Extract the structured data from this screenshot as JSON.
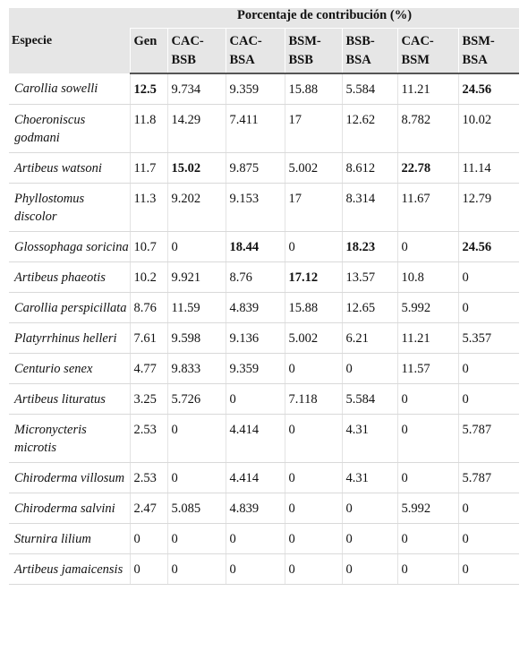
{
  "table": {
    "group_header": "Porcentaje de contribución (%)",
    "species_header": "Especie",
    "columns": [
      "Gen",
      "CAC-\nBSB",
      "CAC-\nBSA",
      "BSM-\nBSB",
      "BSB-\nBSA",
      "CAC-\nBSM",
      "BSM-\nBSA"
    ],
    "rows": [
      {
        "species": "Carollia sowelli",
        "values": [
          "12.5",
          "9.734",
          "9.359",
          "15.88",
          "5.584",
          "11.21",
          "24.56"
        ],
        "bold": [
          0,
          6
        ]
      },
      {
        "species": "Choeroniscus godmani",
        "values": [
          "11.8",
          "14.29",
          "7.411",
          "17",
          "12.62",
          "8.782",
          "10.02"
        ],
        "bold": []
      },
      {
        "species": "Artibeus watsoni",
        "values": [
          "11.7",
          "15.02",
          "9.875",
          "5.002",
          "8.612",
          "22.78",
          "11.14"
        ],
        "bold": [
          1,
          5
        ]
      },
      {
        "species": "Phyllostomus discolor",
        "values": [
          "11.3",
          "9.202",
          "9.153",
          "17",
          "8.314",
          "11.67",
          "12.79"
        ],
        "bold": []
      },
      {
        "species": "Glossophaga soricina",
        "values": [
          "10.7",
          "0",
          "18.44",
          "0",
          "18.23",
          "0",
          "24.56"
        ],
        "bold": [
          2,
          4,
          6
        ]
      },
      {
        "species": "Artibeus phaeotis",
        "values": [
          "10.2",
          "9.921",
          "8.76",
          "17.12",
          "13.57",
          "10.8",
          "0"
        ],
        "bold": [
          3
        ]
      },
      {
        "species": "Carollia perspicillata",
        "values": [
          "8.76",
          "11.59",
          "4.839",
          "15.88",
          "12.65",
          "5.992",
          "0"
        ],
        "bold": []
      },
      {
        "species": "Platyrrhinus helleri",
        "values": [
          "7.61",
          "9.598",
          "9.136",
          "5.002",
          "6.21",
          "11.21",
          "5.357"
        ],
        "bold": []
      },
      {
        "species": "Centurio senex",
        "values": [
          "4.77",
          "9.833",
          "9.359",
          "0",
          "0",
          "11.57",
          "0"
        ],
        "bold": []
      },
      {
        "species": "Artibeus lituratus",
        "values": [
          "3.25",
          "5.726",
          "0",
          "7.118",
          "5.584",
          "0",
          "0"
        ],
        "bold": []
      },
      {
        "species": "Micronycteris microtis",
        "values": [
          "2.53",
          "0",
          "4.414",
          "0",
          "4.31",
          "0",
          "5.787"
        ],
        "bold": []
      },
      {
        "species": "Chiroderma villosum",
        "values": [
          "2.53",
          "0",
          "4.414",
          "0",
          "4.31",
          "0",
          "5.787"
        ],
        "bold": []
      },
      {
        "species": "Chiroderma salvini",
        "values": [
          "2.47",
          "5.085",
          "4.839",
          "0",
          "0",
          "5.992",
          "0"
        ],
        "bold": []
      },
      {
        "species": "Sturnira lilium",
        "values": [
          "0",
          "0",
          "0",
          "0",
          "0",
          "0",
          "0"
        ],
        "bold": []
      },
      {
        "species": "Artibeus jamaicensis",
        "values": [
          "0",
          "0",
          "0",
          "0",
          "0",
          "0",
          "0"
        ],
        "bold": []
      }
    ]
  }
}
